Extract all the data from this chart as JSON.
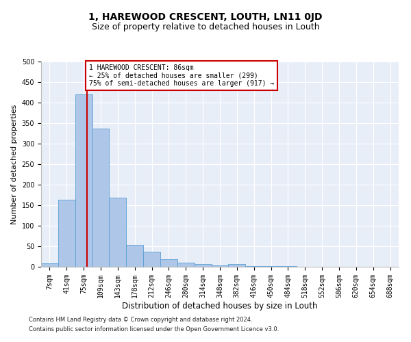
{
  "title": "1, HAREWOOD CRESCENT, LOUTH, LN11 0JD",
  "subtitle": "Size of property relative to detached houses in Louth",
  "xlabel": "Distribution of detached houses by size in Louth",
  "ylabel": "Number of detached properties",
  "bar_labels": [
    "7sqm",
    "41sqm",
    "75sqm",
    "109sqm",
    "143sqm",
    "178sqm",
    "212sqm",
    "246sqm",
    "280sqm",
    "314sqm",
    "348sqm",
    "382sqm",
    "416sqm",
    "450sqm",
    "484sqm",
    "518sqm",
    "552sqm",
    "586sqm",
    "620sqm",
    "654sqm",
    "688sqm"
  ],
  "bar_values": [
    8,
    163,
    420,
    336,
    168,
    53,
    36,
    18,
    10,
    6,
    4,
    6,
    1,
    1,
    1,
    0,
    0,
    0,
    0,
    0,
    0
  ],
  "bar_color": "#aec6e8",
  "bar_edgecolor": "#5a9fd4",
  "property_line_x": 2.18,
  "property_line_color": "#cc0000",
  "annotation_line1": "1 HAREWOOD CRESCENT: 86sqm",
  "annotation_line2": "← 25% of detached houses are smaller (299)",
  "annotation_line3": "75% of semi-detached houses are larger (917) →",
  "annotation_box_color": "#cc0000",
  "ylim": [
    0,
    500
  ],
  "yticks": [
    0,
    50,
    100,
    150,
    200,
    250,
    300,
    350,
    400,
    450,
    500
  ],
  "background_color": "#e8eef8",
  "footer_line1": "Contains HM Land Registry data © Crown copyright and database right 2024.",
  "footer_line2": "Contains public sector information licensed under the Open Government Licence v3.0.",
  "title_fontsize": 10,
  "subtitle_fontsize": 9,
  "xlabel_fontsize": 8.5,
  "ylabel_fontsize": 8,
  "tick_fontsize": 7,
  "annotation_fontsize": 7
}
